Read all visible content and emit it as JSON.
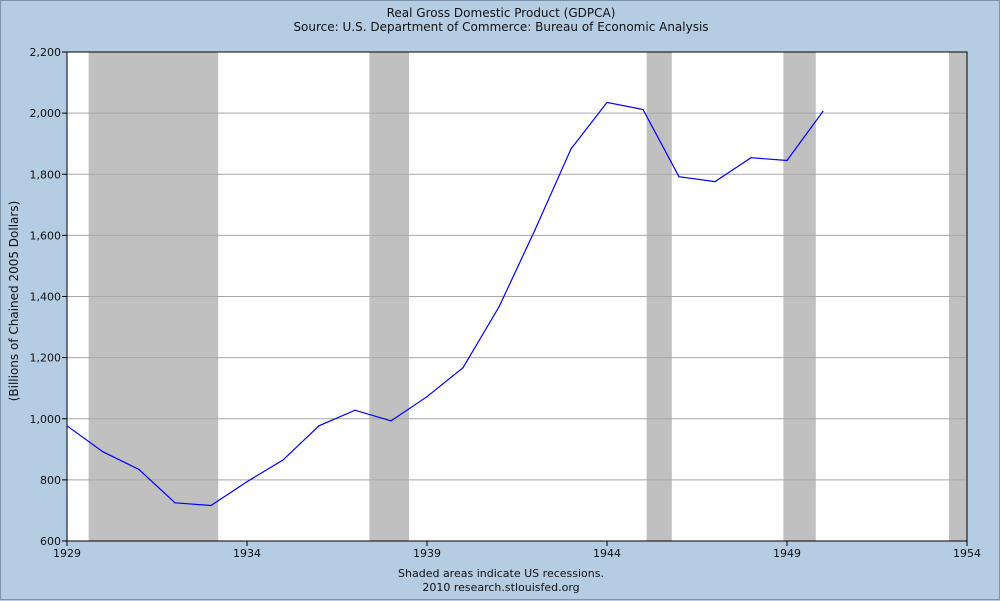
{
  "chart_data": {
    "type": "line",
    "title": "Real Gross Domestic Product (GDPCA)",
    "subtitle": "Source: U.S. Department of Commerce: Bureau of Economic Analysis",
    "ylabel": "(Billions of Chained 2005 Dollars)",
    "xlabel": "",
    "xlim": [
      1929,
      1954
    ],
    "ylim": [
      600,
      2200
    ],
    "x_ticks": [
      1929,
      1934,
      1939,
      1944,
      1949,
      1954
    ],
    "y_ticks": [
      600,
      800,
      1000,
      1200,
      1400,
      1600,
      1800,
      2000,
      2200
    ],
    "y_tick_labels": [
      "600",
      "800",
      "1,000",
      "1,200",
      "1,400",
      "1,600",
      "1,800",
      "2,000",
      "2,200"
    ],
    "grid": true,
    "series": [
      {
        "color": "#0000ff",
        "x": [
          1929,
          1930,
          1931,
          1932,
          1933,
          1934,
          1935,
          1936,
          1937,
          1938,
          1939,
          1940,
          1941,
          1942,
          1943,
          1944,
          1945,
          1946,
          1947,
          1948,
          1949,
          1950
        ],
        "values": [
          977,
          892,
          834,
          725,
          716,
          794,
          865,
          977,
          1028,
          993,
          1072,
          1167,
          1366,
          1618,
          1883,
          2035,
          2012,
          1792,
          1776,
          1854,
          1845,
          2006
        ]
      }
    ],
    "recessions": [
      [
        1929.6,
        1933.2
      ],
      [
        1937.4,
        1938.5
      ],
      [
        1945.1,
        1945.8
      ],
      [
        1948.9,
        1949.8
      ],
      [
        1953.5,
        1954.0
      ]
    ],
    "recession_color": "#c0c0c0",
    "notes": [
      "Shaded areas indicate US recessions.",
      "2010 research.stlouisfed.org"
    ]
  }
}
